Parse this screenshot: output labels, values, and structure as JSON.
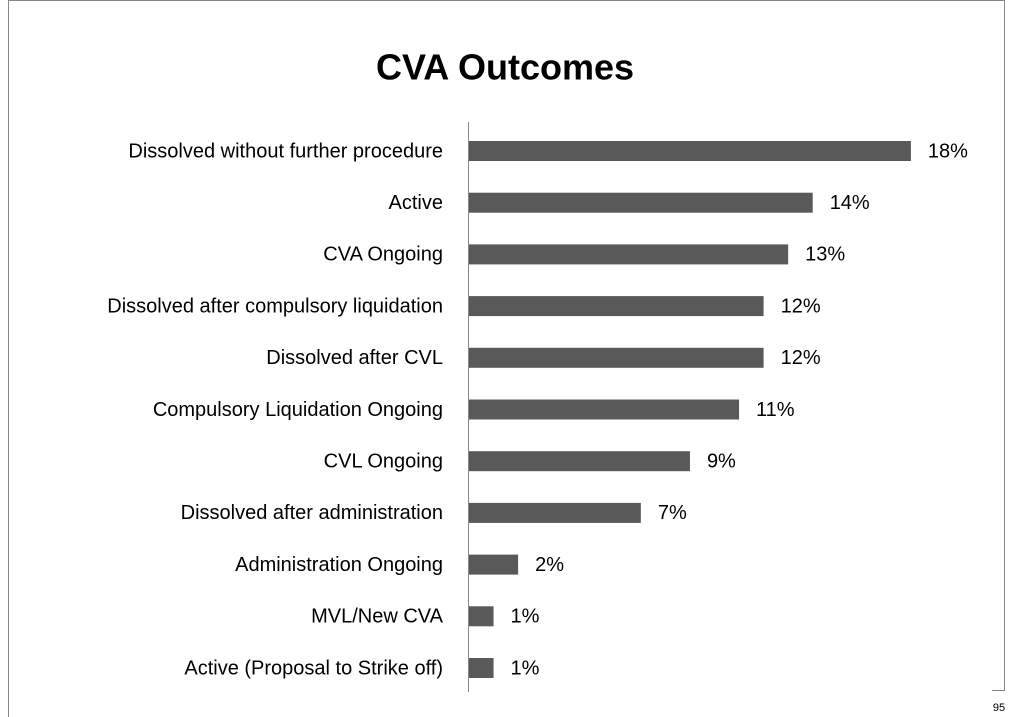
{
  "chart_data": {
    "type": "barh",
    "title": "CVA Outcomes",
    "categories": [
      "Dissolved without further procedure",
      "Active",
      "CVA Ongoing",
      "Dissolved after compulsory liquidation",
      "Dissolved after CVL",
      "Compulsory Liquidation Ongoing",
      "CVL Ongoing",
      "Dissolved after administration",
      "Administration Ongoing",
      "MVL/New CVA",
      "Active (Proposal to Strike off)"
    ],
    "values": [
      18,
      14,
      13,
      12,
      12,
      11,
      9,
      7,
      2,
      1,
      1
    ],
    "value_labels": [
      "18%",
      "14%",
      "13%",
      "12%",
      "12%",
      "11%",
      "9%",
      "7%",
      "2%",
      "1%",
      "1%"
    ],
    "color": "#595959"
  },
  "page_number": 95
}
